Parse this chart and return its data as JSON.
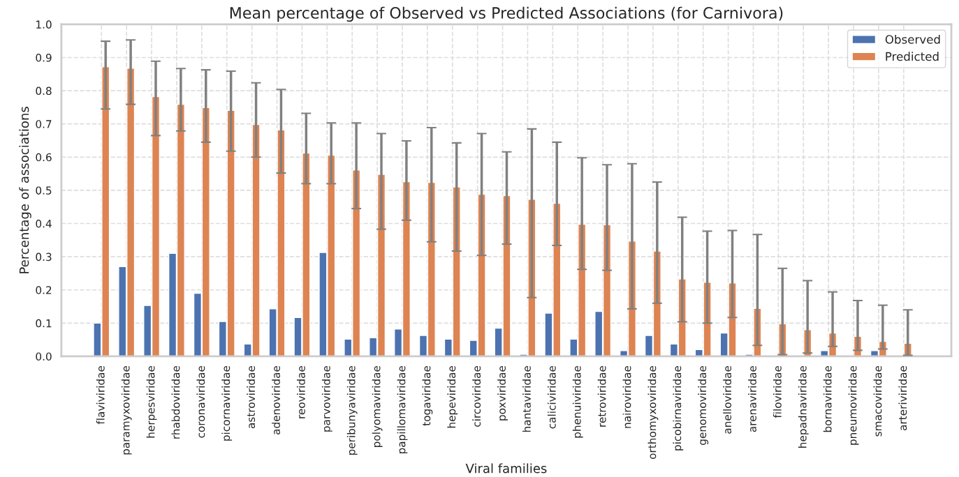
{
  "chart_data": {
    "type": "bar",
    "title": "Mean percentage of Observed vs Predicted Associations (for Carnivora)",
    "xlabel": "Viral families",
    "ylabel": "Percentage of associations",
    "categories": [
      "flaviviridae",
      "paramyxoviridae",
      "herpesviridae",
      "rhabdoviridae",
      "coronaviridae",
      "picornaviridae",
      "astroviridae",
      "adenoviridae",
      "reoviridae",
      "parvoviridae",
      "peribunyaviridae",
      "polyomaviridae",
      "papillomaviridae",
      "togaviridae",
      "hepeviridae",
      "circoviridae",
      "poxviridae",
      "hantaviridae",
      "caliciviridae",
      "phenuiviridae",
      "retroviridae",
      "nairoviridae",
      "orthomyxoviridae",
      "picobirnaviridae",
      "genomoviridae",
      "anelloviridae",
      "arenaviridae",
      "filoviridae",
      "hepadnaviridae",
      "bornaviridae",
      "pneumoviridae",
      "smacoviridae",
      "arteriviridae"
    ],
    "series": [
      {
        "name": "Observed",
        "color": "#4c72b0",
        "values": [
          0.1,
          0.27,
          0.153,
          0.31,
          0.19,
          0.105,
          0.037,
          0.143,
          0.117,
          0.313,
          0.052,
          0.056,
          0.082,
          0.063,
          0.052,
          0.048,
          0.085,
          0.006,
          0.13,
          0.052,
          0.135,
          0.017,
          0.063,
          0.037,
          0.02,
          0.07,
          0.006,
          null,
          null,
          0.017,
          null,
          0.017,
          null
        ]
      },
      {
        "name": "Predicted",
        "color": "#dd8452",
        "values": [
          0.872,
          0.868,
          0.782,
          0.759,
          0.749,
          0.741,
          0.698,
          0.682,
          0.612,
          0.606,
          0.561,
          0.548,
          0.526,
          0.524,
          0.51,
          0.488,
          0.484,
          0.473,
          0.461,
          0.398,
          0.396,
          0.347,
          0.317,
          0.233,
          0.223,
          0.221,
          0.144,
          0.098,
          0.08,
          0.07,
          0.06,
          0.045,
          0.039
        ],
        "errors": [
          [
            0.745,
            0.949
          ],
          [
            0.759,
            0.953
          ],
          [
            0.665,
            0.889
          ],
          [
            0.679,
            0.867
          ],
          [
            0.645,
            0.863
          ],
          [
            0.618,
            0.859
          ],
          [
            0.6,
            0.824
          ],
          [
            0.552,
            0.804
          ],
          [
            0.52,
            0.732
          ],
          [
            0.52,
            0.703
          ],
          [
            0.445,
            0.703
          ],
          [
            0.383,
            0.671
          ],
          [
            0.41,
            0.649
          ],
          [
            0.345,
            0.689
          ],
          [
            0.317,
            0.643
          ],
          [
            0.304,
            0.671
          ],
          [
            0.338,
            0.616
          ],
          [
            0.177,
            0.685
          ],
          [
            0.334,
            0.645
          ],
          [
            0.262,
            0.598
          ],
          [
            0.259,
            0.577
          ],
          [
            0.143,
            0.58
          ],
          [
            0.16,
            0.525
          ],
          [
            0.104,
            0.419
          ],
          [
            0.1,
            0.377
          ],
          [
            0.117,
            0.379
          ],
          [
            0.033,
            0.367
          ],
          [
            0.005,
            0.265
          ],
          [
            0.01,
            0.228
          ],
          [
            0.03,
            0.194
          ],
          [
            0.018,
            0.168
          ],
          [
            0.022,
            0.154
          ],
          [
            0.003,
            0.14
          ]
        ]
      }
    ],
    "ylim": [
      0,
      1.0
    ],
    "yticks": [
      {
        "value": 0,
        "label": "0.0"
      },
      0.1,
      0.2,
      0.3,
      0.4,
      0.5,
      0.6,
      0.7,
      0.8,
      0.9,
      {
        "value": 1.0,
        "label": "1.0"
      }
    ],
    "grid": true,
    "legend": "top right"
  }
}
